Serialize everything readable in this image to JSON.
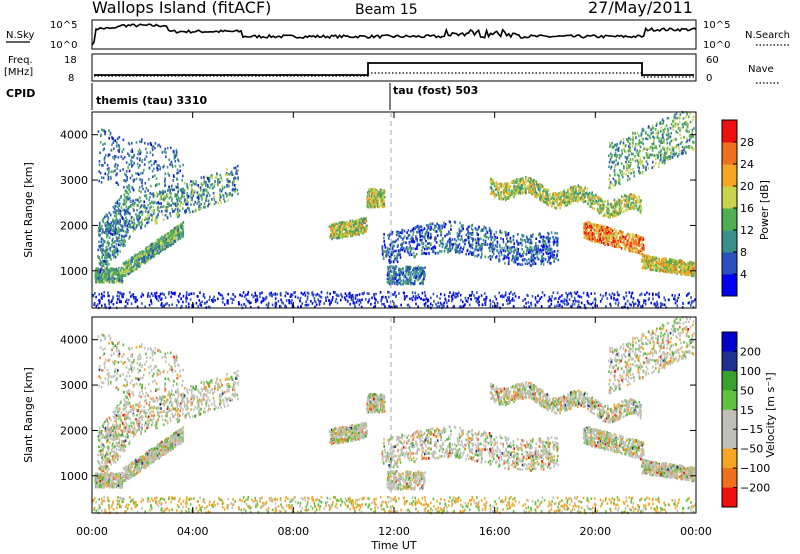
{
  "header": {
    "station": "Wallops Island (fitACF)",
    "beam": "Beam 15",
    "date": "27/May/2011"
  },
  "noise_panel": {
    "left_label": "N.Sky",
    "right_label": "N.Search",
    "left_ticks": [
      "10^5",
      "10^0"
    ],
    "right_ticks": [
      "10^5",
      "10^0"
    ]
  },
  "freq_panel": {
    "left_label_1": "Freq.",
    "left_label_2": "[MHz]",
    "left_ticks": [
      "18",
      "8"
    ],
    "right_label": "Nave",
    "right_ticks": [
      "60",
      "0"
    ],
    "cpid_label": "CPID",
    "modes": [
      {
        "name": "themis (tau) 3310"
      },
      {
        "name": "tau (fost) 503"
      }
    ]
  },
  "colors": {
    "power": [
      "#0000ee",
      "#2a4fbf",
      "#3b8f8a",
      "#4fae4f",
      "#c8d24a",
      "#f5a623",
      "#f07020",
      "#ee1010"
    ],
    "velocity": [
      "#ee1010",
      "#f07020",
      "#f5a623",
      "#c0c0b8",
      "#c0c0b8",
      "#60c040",
      "#3aa030",
      "#203090",
      "#0000cc"
    ]
  },
  "chart_data": [
    {
      "type": "heatmap",
      "name": "power",
      "ylabel": "Slant Range [km]",
      "yticks": [
        "1000",
        "2000",
        "3000",
        "4000"
      ],
      "ylim": [
        180,
        4500
      ],
      "xlim": [
        0,
        24
      ],
      "colorbar_label": "Power [dB]",
      "colorbar_ticks": [
        "4",
        "8",
        "12",
        "16",
        "20",
        "24",
        "28"
      ],
      "colorbar_range": [
        0,
        32
      ]
    },
    {
      "type": "heatmap",
      "name": "velocity",
      "ylabel": "Slant Range [km]",
      "yticks": [
        "1000",
        "2000",
        "3000",
        "4000"
      ],
      "ylim": [
        180,
        4500
      ],
      "xlim": [
        0,
        24
      ],
      "xlabel": "Time UT",
      "xticks": [
        "00:00",
        "04:00",
        "08:00",
        "12:00",
        "16:00",
        "20:00",
        "00:00"
      ],
      "colorbar_label": "Velocity [m s⁻¹]",
      "colorbar_ticks": [
        "200",
        "100",
        "50",
        "15",
        "−15",
        "−50",
        "−100",
        "−200"
      ]
    }
  ]
}
